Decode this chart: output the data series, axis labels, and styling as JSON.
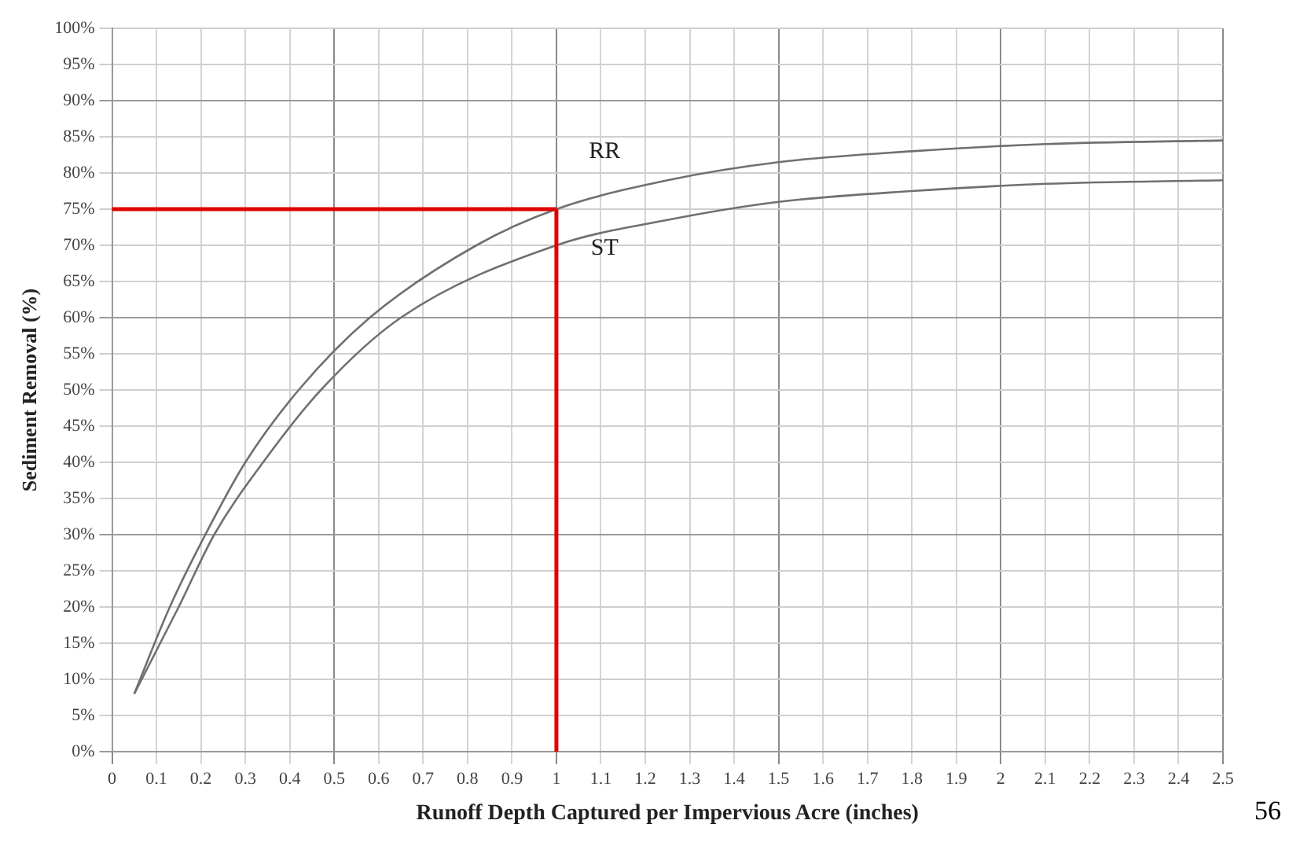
{
  "chart_data": {
    "type": "line",
    "xlabel": "Runoff Depth Captured per Impervious Acre (inches)",
    "ylabel": "Sediment Removal (%)",
    "series": [
      {
        "name": "RR",
        "color": "#707070",
        "x": [
          0.05,
          0.13,
          0.21,
          0.3,
          0.42,
          0.58,
          0.82,
          1,
          1.25,
          1.5,
          1.8,
          2.1,
          2.5
        ],
        "values": [
          8,
          20,
          30,
          40,
          50,
          60,
          70,
          75,
          79,
          81.5,
          83,
          84,
          84.5
        ]
      },
      {
        "name": "ST",
        "color": "#707070",
        "x": [
          0.05,
          0.15,
          0.23,
          0.34,
          0.47,
          0.65,
          1,
          1.25,
          1.5,
          1.8,
          2.1,
          2.5
        ],
        "values": [
          8,
          20,
          30,
          40,
          50,
          60,
          70,
          73.5,
          76,
          77.5,
          78.5,
          79
        ]
      }
    ],
    "xlim": [
      0,
      2.5
    ],
    "xticks": [
      0,
      0.1,
      0.2,
      0.3,
      0.4,
      0.5,
      0.6,
      0.7,
      0.8,
      0.9,
      1,
      1.1,
      1.2,
      1.3,
      1.4,
      1.5,
      1.6,
      1.7,
      1.8,
      1.9,
      2,
      2.1,
      2.2,
      2.3,
      2.4,
      2.5
    ],
    "ylim": [
      0,
      100
    ],
    "yticks": [
      {
        "value": 0,
        "label": "0%"
      },
      {
        "value": 5,
        "label": "5%"
      },
      {
        "value": 10,
        "label": "10%"
      },
      {
        "value": 15,
        "label": "15%"
      },
      {
        "value": 20,
        "label": "20%"
      },
      {
        "value": 25,
        "label": "25%"
      },
      {
        "value": 30,
        "label": "30%"
      },
      {
        "value": 35,
        "label": "35%"
      },
      {
        "value": 40,
        "label": "40%"
      },
      {
        "value": 45,
        "label": "45%"
      },
      {
        "value": 50,
        "label": "50%"
      },
      {
        "value": 55,
        "label": "55%"
      },
      {
        "value": 60,
        "label": "60%"
      },
      {
        "value": 65,
        "label": "65%"
      },
      {
        "value": 70,
        "label": "70%"
      },
      {
        "value": 75,
        "label": "75%"
      },
      {
        "value": 80,
        "label": "80%"
      },
      {
        "value": 85,
        "label": "85%"
      },
      {
        "value": 90,
        "label": "90%"
      },
      {
        "value": 95,
        "label": "95%"
      },
      {
        "value": 100,
        "label": "100%"
      }
    ],
    "grid": true,
    "legend": false,
    "marker": "none",
    "line_style": "solid",
    "ref_lines": [
      {
        "axis": "x",
        "value": 1,
        "color": "#e00000"
      },
      {
        "axis": "y",
        "value": 75,
        "color": "#e00000"
      }
    ],
    "annotations": [
      "56"
    ]
  }
}
